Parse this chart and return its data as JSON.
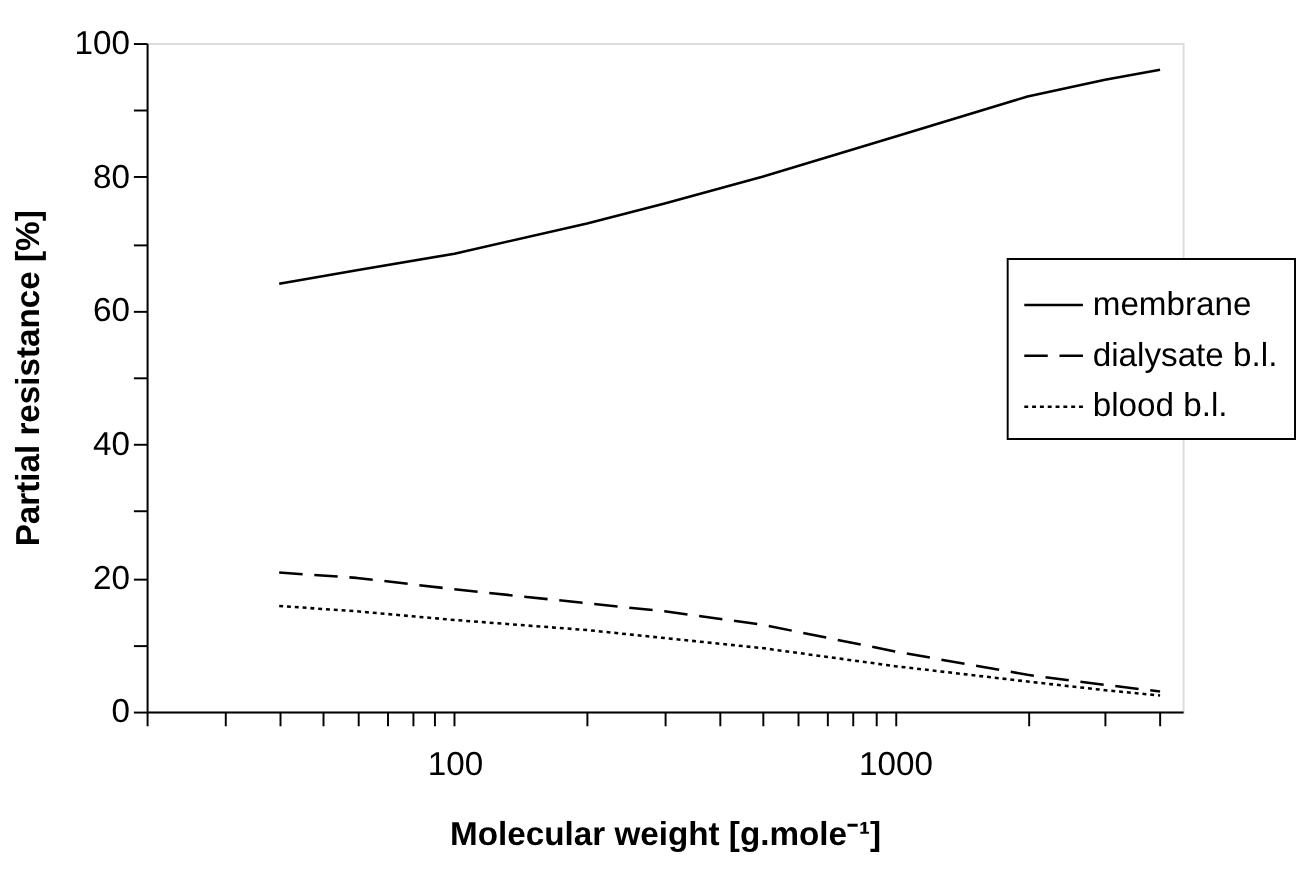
{
  "chart_data": {
    "type": "line",
    "xlabel": "Molecular weight [g.mole⁻¹]",
    "ylabel": "Partial resistance [%]",
    "log": "x",
    "xlim": [
      20,
      4500
    ],
    "ylim": [
      0,
      100
    ],
    "xticks": [
      {
        "value": 20,
        "label": null
      },
      {
        "value": 30,
        "label": null
      },
      {
        "value": 40,
        "label": null
      },
      {
        "value": 50,
        "label": null
      },
      {
        "value": 60,
        "label": null
      },
      {
        "value": 70,
        "label": null
      },
      {
        "value": 80,
        "label": null
      },
      {
        "value": 90,
        "label": null
      },
      100,
      {
        "value": 200,
        "label": null
      },
      {
        "value": 300,
        "label": null
      },
      {
        "value": 400,
        "label": null
      },
      {
        "value": 500,
        "label": null
      },
      {
        "value": 600,
        "label": null
      },
      {
        "value": 700,
        "label": null
      },
      {
        "value": 800,
        "label": null
      },
      {
        "value": 900,
        "label": null
      },
      1000,
      {
        "value": 2000,
        "label": null
      },
      {
        "value": 3000,
        "label": null
      },
      {
        "value": 4000,
        "label": null
      }
    ],
    "yticks": [
      0,
      {
        "value": 10,
        "label": null
      },
      20,
      {
        "value": 30,
        "label": null
      },
      40,
      {
        "value": 50,
        "label": null
      },
      60,
      {
        "value": 70,
        "label": null
      },
      80,
      {
        "value": 90,
        "label": null
      },
      100
    ],
    "grid": false,
    "legend": "right",
    "marker": "none",
    "x": [
      40,
      60,
      100,
      200,
      300,
      500,
      1000,
      2000,
      3000,
      4000
    ],
    "series": [
      {
        "name": "membrane",
        "color": "#000000",
        "line_style": "solid",
        "values": [
          64,
          66,
          68.5,
          73,
          76,
          80,
          86,
          92,
          94.5,
          96
        ]
      },
      {
        "name": "dialysate b.l.",
        "color": "#000000",
        "line_style": "dashed",
        "values": [
          20.8,
          20,
          18.3,
          16.2,
          15,
          13,
          9,
          5.5,
          4,
          3
        ]
      },
      {
        "name": "blood b.l.",
        "color": "#000000",
        "line_style": "dotted",
        "values": [
          15.8,
          15,
          13.7,
          12.2,
          11,
          9.5,
          6.8,
          4.5,
          3.2,
          2.4
        ]
      }
    ]
  }
}
